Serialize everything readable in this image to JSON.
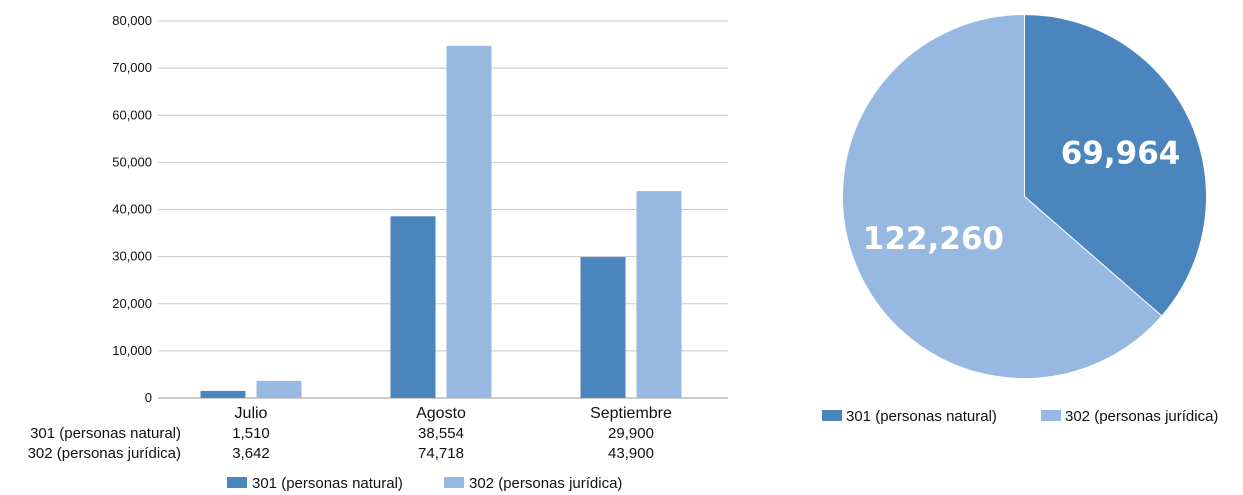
{
  "colors": {
    "series_301": "#4a85bd",
    "series_302": "#97b8e1",
    "grid": "#c8c8c8",
    "axis": "#999999"
  },
  "chart_data": [
    {
      "type": "bar",
      "categories": [
        "Julio",
        "Agosto",
        "Septiembre"
      ],
      "series": [
        {
          "name": "301 (personas natural)",
          "values": [
            1510,
            38554,
            29900
          ]
        },
        {
          "name": "302 (personas jurídica)",
          "values": [
            3642,
            74718,
            43900
          ]
        }
      ],
      "table_rows": [
        {
          "label": "301 (personas natural)",
          "values": [
            "1,510",
            "38,554",
            "29,900"
          ]
        },
        {
          "label": "302 (personas jurídica)",
          "values": [
            "3,642",
            "74,718",
            "43,900"
          ]
        }
      ],
      "ylim": [
        0,
        80000
      ],
      "yticks": [
        "0",
        "10,000",
        "20,000",
        "30,000",
        "40,000",
        "50,000",
        "60,000",
        "70,000",
        "80,000"
      ],
      "grid": true,
      "legend_position": "bottom",
      "legend": [
        "301 (personas natural)",
        "302 (personas jurídica)"
      ]
    },
    {
      "type": "pie",
      "slices": [
        {
          "name": "301 (personas natural)",
          "value": 69964,
          "label": "69,964"
        },
        {
          "name": "302 (personas jurídica)",
          "value": 122260,
          "label": "122,260"
        }
      ],
      "legend_position": "bottom",
      "legend": [
        "301 (personas natural)",
        "302 (personas jurídica)"
      ]
    }
  ]
}
